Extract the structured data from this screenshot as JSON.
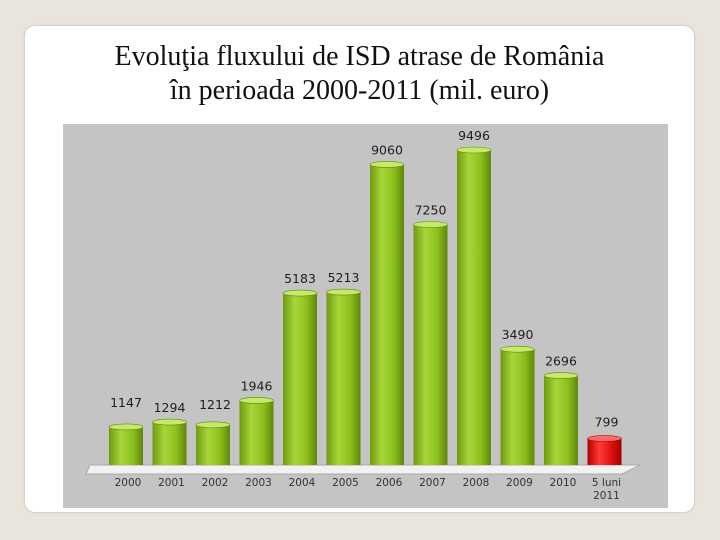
{
  "title": {
    "line1": "Evoluţia fluxului de ISD atrase de România",
    "line2": "în perioada 2000-2011 (mil. euro)"
  },
  "chart_data": {
    "type": "bar",
    "title": "Evoluţia fluxului de ISD atrase de România în perioada 2000-2011 (mil. euro)",
    "categories": [
      "2000",
      "2001",
      "2002",
      "2003",
      "2004",
      "2005",
      "2006",
      "2007",
      "2008",
      "2009",
      "2010",
      "5 luni 2011"
    ],
    "category_lines": [
      [
        "2000"
      ],
      [
        "2001"
      ],
      [
        "2002"
      ],
      [
        "2003"
      ],
      [
        "2004"
      ],
      [
        "2005"
      ],
      [
        "2006"
      ],
      [
        "2007"
      ],
      [
        "2008"
      ],
      [
        "2009"
      ],
      [
        "2010"
      ],
      [
        "5 luni",
        "2011"
      ]
    ],
    "values": [
      1147,
      1294,
      1212,
      1946,
      5183,
      5213,
      9060,
      7250,
      9496,
      3490,
      2696,
      799
    ],
    "data_labels": [
      "1147",
      "1294",
      "1212",
      "1946",
      "5183",
      "5213",
      "9060",
      "7250",
      "9496",
      "3490",
      "2696",
      "799"
    ],
    "ylim": [
      0,
      10000
    ],
    "grid": false,
    "legend": "none",
    "colors": {
      "bar": "#8dc21f",
      "highlight": "#e01010",
      "plot_background": "#c4c4c4",
      "label": "#1e1e1e"
    },
    "highlight_index": 11
  }
}
